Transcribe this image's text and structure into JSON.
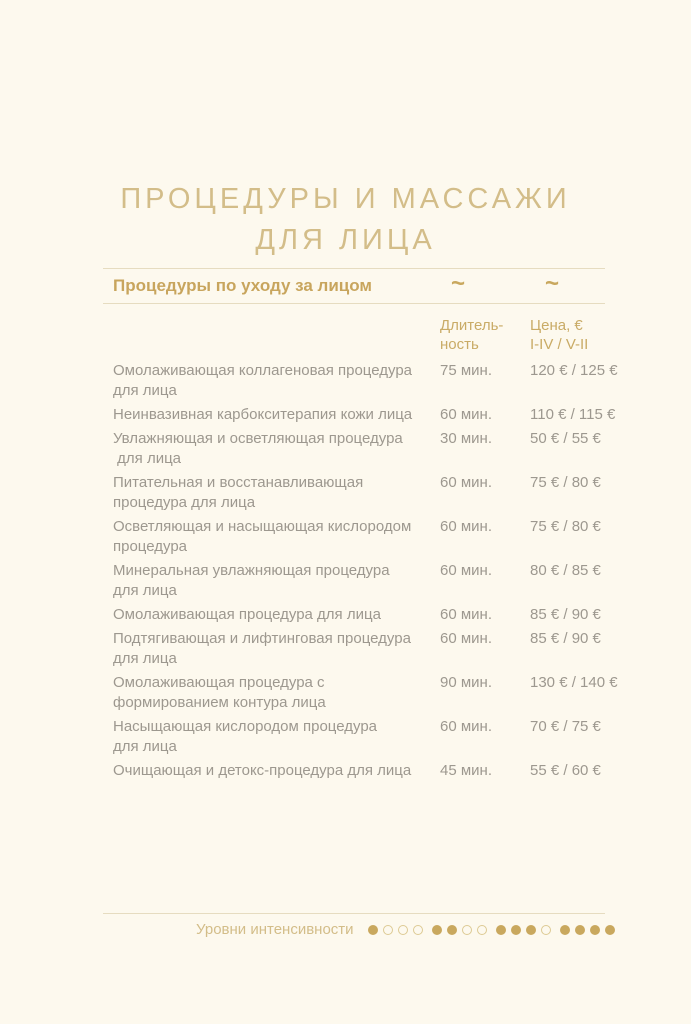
{
  "page": {
    "title": "ПРОЦЕДУРЫ И МАССАЖИ\nДЛЯ ЛИЦА"
  },
  "section": {
    "heading": "Процедуры по уходу за лицом",
    "tilde": "~"
  },
  "table": {
    "columns": {
      "duration_header": "Длитель-\nность",
      "price_header": "Цена, €\nI-IV / V-II"
    },
    "rows": [
      {
        "name": "Омолаживающая коллагеновая процедура\nдля лица",
        "duration": "75 мин.",
        "price": "120 € / 125 €"
      },
      {
        "name": "Неинвазивная карбокситерапия кожи лица",
        "duration": "60 мин.",
        "price": "110 € / 115 €"
      },
      {
        "name": "Увлажняющая и осветляющая процедура\n для лица",
        "duration": "30 мин.",
        "price": "50 € / 55 €"
      },
      {
        "name": "Питательная и восстанавливающая\nпроцедура для лица",
        "duration": "60 мин.",
        "price": "75 € / 80 €"
      },
      {
        "name": "Осветляющая и насыщающая кислородом\nпроцедура",
        "duration": "60 мин.",
        "price": "75 € / 80 €"
      },
      {
        "name": "Минеральная увлажняющая процедура\nдля лица",
        "duration": "60 мин.",
        "price": "80 € / 85 €"
      },
      {
        "name": "Омолаживающая процедура для лица",
        "duration": "60 мин.",
        "price": "85 € / 90 €"
      },
      {
        "name": "Подтягивающая и лифтинговая процедура\nдля лица",
        "duration": "60 мин.",
        "price": "85 € / 90 €"
      },
      {
        "name": "Омолаживающая процедура с\nформированием контура лица",
        "duration": "90 мин.",
        "price": "130 € / 140 €"
      },
      {
        "name": "Насыщающая кислородом процедура\nдля лица",
        "duration": "60 мин.",
        "price": "70 € / 75 €"
      },
      {
        "name": "Очищающая и детокс-процедура для лица",
        "duration": "45 мин.",
        "price": "55 € / 60 €"
      }
    ]
  },
  "footer": {
    "label": "Уровни интенсивности",
    "levels": [
      1,
      2,
      3,
      4
    ],
    "dots_per_level": 4
  },
  "colors": {
    "background": "#fdf9ee",
    "title_gold": "#d3bd89",
    "accent_gold": "#c8a55d",
    "body_gray": "#9d988f",
    "line": "#e6dcc0",
    "dot_filled": "#c9a85e",
    "dot_outline": "#ddca93"
  }
}
